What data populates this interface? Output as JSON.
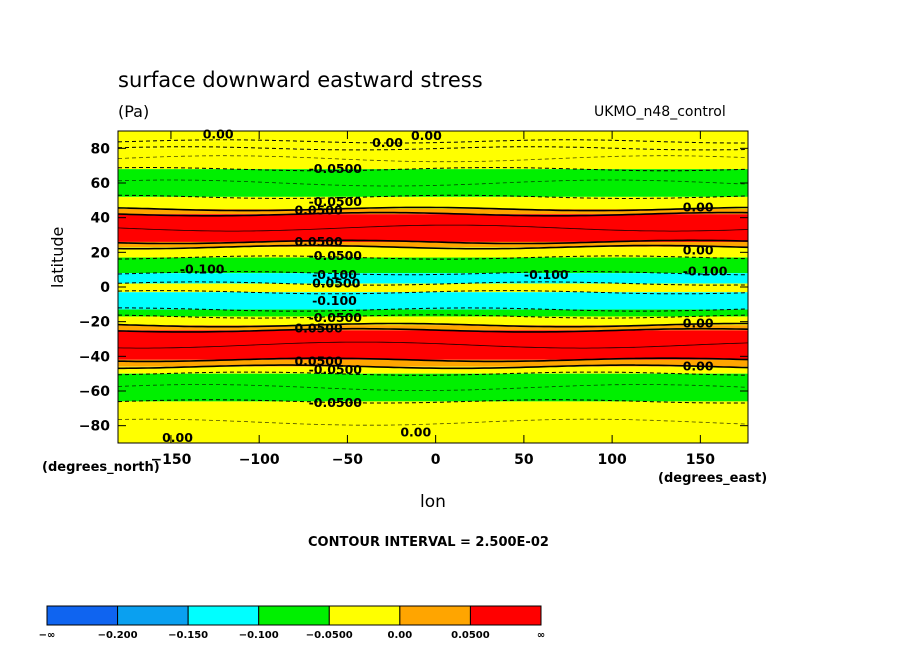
{
  "header": {
    "title": "surface downward eastward stress",
    "units": "(Pa)",
    "dataset": "UKMO_n48_control"
  },
  "axes": {
    "ylabel": "latitude",
    "yunit": "(degrees_north)",
    "xlabel": "lon",
    "xunit": "(degrees_east)"
  },
  "footer": {
    "contour_interval": "CONTOUR INTERVAL = 2.500E-02"
  },
  "chart_data": {
    "type": "heatmap",
    "title": "surface downward eastward stress",
    "subtitle": "(Pa)",
    "xlabel": "lon",
    "ylabel": "latitude",
    "xlim": [
      -180,
      177
    ],
    "ylim": [
      -90,
      90
    ],
    "x_ticks": [
      -150,
      -100,
      -50,
      0,
      50,
      100,
      150
    ],
    "y_ticks": [
      80,
      60,
      40,
      20,
      0,
      -20,
      -40,
      -60,
      -80
    ],
    "contour_interval": 0.025,
    "legend": {
      "placement": "bottom",
      "levels": [
        "-∞",
        "-0.200",
        "-0.150",
        "-0.100",
        "-0.0500",
        "0.00",
        "0.0500",
        "∞"
      ],
      "colors": [
        "#0f64f0",
        "#0aa0f0",
        "#00ffff",
        "#00f000",
        "#ffff00",
        "#ffa500",
        "#ff0000"
      ]
    },
    "bands": [
      {
        "lat_top": 90,
        "lat_bottom": 84,
        "color": "#ffff00"
      },
      {
        "lat_top": 84,
        "lat_bottom": 80,
        "color": "#ffff00"
      },
      {
        "lat_top": 80,
        "lat_bottom": 68,
        "color": "#ffff00"
      },
      {
        "lat_top": 68,
        "lat_bottom": 52,
        "color": "#00f000"
      },
      {
        "lat_top": 52,
        "lat_bottom": 45,
        "color": "#ffff00"
      },
      {
        "lat_top": 45,
        "lat_bottom": 42,
        "color": "#ffa500"
      },
      {
        "lat_top": 42,
        "lat_bottom": 26,
        "color": "#ff0000"
      },
      {
        "lat_top": 26,
        "lat_bottom": 23,
        "color": "#ffa500"
      },
      {
        "lat_top": 23,
        "lat_bottom": 17,
        "color": "#ffff00"
      },
      {
        "lat_top": 17,
        "lat_bottom": 8,
        "color": "#00f000"
      },
      {
        "lat_top": 8,
        "lat_bottom": 2,
        "color": "#00ffff"
      },
      {
        "lat_top": 2,
        "lat_bottom": -3,
        "color": "#ffff00"
      },
      {
        "lat_top": -3,
        "lat_bottom": -13,
        "color": "#00ffff"
      },
      {
        "lat_top": -13,
        "lat_bottom": -17,
        "color": "#00f000"
      },
      {
        "lat_top": -17,
        "lat_bottom": -22,
        "color": "#ffff00"
      },
      {
        "lat_top": -22,
        "lat_bottom": -25,
        "color": "#ffa500"
      },
      {
        "lat_top": -25,
        "lat_bottom": -42,
        "color": "#ff0000"
      },
      {
        "lat_top": -42,
        "lat_bottom": -46,
        "color": "#ffa500"
      },
      {
        "lat_top": -46,
        "lat_bottom": -50,
        "color": "#ffff00"
      },
      {
        "lat_top": -50,
        "lat_bottom": -66,
        "color": "#00f000"
      },
      {
        "lat_top": -66,
        "lat_bottom": -90,
        "color": "#ffff00"
      }
    ],
    "contour_labels": [
      {
        "text": "0.00",
        "lon": -132,
        "lat": 88
      },
      {
        "text": "0.00",
        "lon": -36,
        "lat": 83
      },
      {
        "text": "0.00",
        "lon": -14,
        "lat": 87
      },
      {
        "text": "-0.0500",
        "lon": -72,
        "lat": 68
      },
      {
        "text": "-0.0500",
        "lon": -72,
        "lat": 49
      },
      {
        "text": "0.0500",
        "lon": -80,
        "lat": 44
      },
      {
        "text": "0.00",
        "lon": 140,
        "lat": 46
      },
      {
        "text": "0.0500",
        "lon": -80,
        "lat": 26
      },
      {
        "text": "-0.0500",
        "lon": -72,
        "lat": 18
      },
      {
        "text": "0.00",
        "lon": 140,
        "lat": 21
      },
      {
        "text": "-0.100",
        "lon": -145,
        "lat": 10
      },
      {
        "text": "-0.100",
        "lon": -70,
        "lat": 7
      },
      {
        "text": "-0.100",
        "lon": 50,
        "lat": 7
      },
      {
        "text": "-0.100",
        "lon": 140,
        "lat": 9
      },
      {
        "text": "0.0500",
        "lon": -70,
        "lat": 2
      },
      {
        "text": "-0.100",
        "lon": -70,
        "lat": -8
      },
      {
        "text": "-0.0500",
        "lon": -72,
        "lat": -18
      },
      {
        "text": "0.0500",
        "lon": -80,
        "lat": -24
      },
      {
        "text": "0.00",
        "lon": 140,
        "lat": -21
      },
      {
        "text": "0.0500",
        "lon": -80,
        "lat": -43
      },
      {
        "text": "-0.0500",
        "lon": -72,
        "lat": -48
      },
      {
        "text": "0.00",
        "lon": 140,
        "lat": -46
      },
      {
        "text": "-0.0500",
        "lon": -72,
        "lat": -67
      },
      {
        "text": "0.00",
        "lon": -20,
        "lat": -84
      },
      {
        "text": "0.00",
        "lon": -155,
        "lat": -87
      }
    ]
  }
}
